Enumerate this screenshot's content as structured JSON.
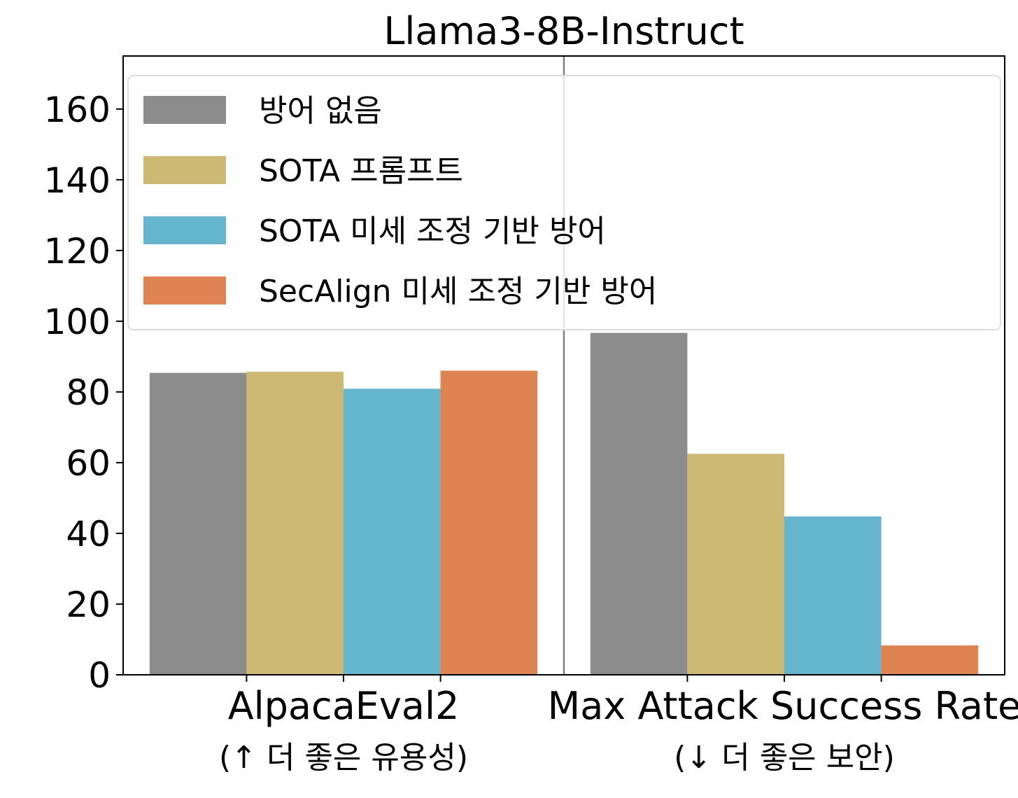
{
  "chart_data": {
    "type": "bar",
    "title": "Llama3-8B-Instruct",
    "categories": [
      "AlpacaEval2",
      "Max Attack Success Rate"
    ],
    "category_sublabels": [
      "(↑ 더 좋은 유용성)",
      "(↓ 더 좋은 보안)"
    ],
    "series": [
      {
        "name": "방어 없음",
        "color": "#8c8c8c",
        "values": [
          85.4,
          96.7
        ]
      },
      {
        "name": "SOTA 프롬프트",
        "color": "#ccb974",
        "values": [
          85.7,
          62.5
        ]
      },
      {
        "name": "SOTA 미세 조정 기반 방어",
        "color": "#64b5cd",
        "values": [
          80.9,
          44.8
        ]
      },
      {
        "name": "SecAlign 미세 조정 기반 방어",
        "color": "#dd8452",
        "values": [
          86.0,
          8.3
        ]
      }
    ],
    "ylim": [
      0,
      175
    ],
    "yticks": [
      "0",
      "20",
      "40",
      "60",
      "80",
      "100",
      "120",
      "140",
      "160"
    ],
    "legend_position": "top",
    "grid": false
  }
}
